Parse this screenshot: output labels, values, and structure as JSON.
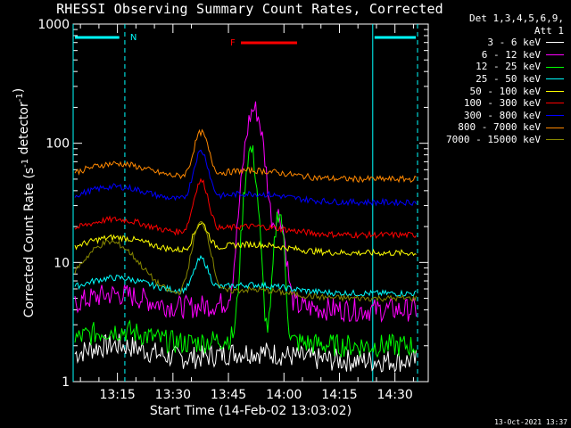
{
  "chart_data": {
    "type": "line",
    "title": "RHESSI Observing Summary Count Rates, Corrected",
    "xlabel": "Start Time (14-Feb-02 13:03:02)",
    "ylabel": "Corrected Count Rate (s",
    "ylabel_sup1": "-1",
    "ylabel_mid": " detector",
    "ylabel_sup2": "-1",
    "ylabel_end": ")",
    "yscale": "log",
    "ylim": [
      1,
      1000
    ],
    "xlim_minutes": [
      13.03,
      14.66
    ],
    "x_ticks": [
      "13:15",
      "13:30",
      "13:45",
      "14:00",
      "14:15",
      "14:30"
    ],
    "y_ticks": [
      "1",
      "10",
      "100",
      "1000"
    ],
    "legend_header": [
      "Det 1,3,4,5,6,9,",
      "Att 1"
    ],
    "annotations": {
      "night_label": "N",
      "flare_label": "F"
    },
    "footer": "13-Oct-2021 13:37",
    "series": [
      {
        "name": "3 - 6 keV",
        "color": "#ffffff",
        "baseline": 1.5,
        "peak": 3
      },
      {
        "name": "6 - 12 keV",
        "color": "#ff00ff",
        "baseline": 4,
        "peak": 170
      },
      {
        "name": "12 - 25 keV",
        "color": "#00ff00",
        "baseline": 2,
        "peak": 90
      },
      {
        "name": "25 - 50 keV",
        "color": "#00ffff",
        "baseline": 5.5,
        "peak": 10
      },
      {
        "name": "50 - 100 keV",
        "color": "#ffff00",
        "baseline": 12,
        "peak": 20
      },
      {
        "name": "100 - 300 keV",
        "color": "#ff0000",
        "baseline": 17,
        "peak": 45
      },
      {
        "name": "300 - 800 keV",
        "color": "#0000ff",
        "baseline": 32,
        "peak": 80
      },
      {
        "name": "800 - 7000 keV",
        "color": "#ff8800",
        "baseline": 50,
        "peak": 115
      },
      {
        "name": "7000 - 15000 keV",
        "color": "#888800",
        "baseline": 5,
        "peak": 22
      }
    ]
  }
}
